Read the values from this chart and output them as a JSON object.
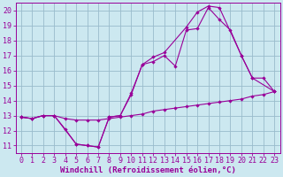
{
  "bg_color": "#cce8f0",
  "line_color": "#990099",
  "grid_color": "#99bbcc",
  "xlabel": "Windchill (Refroidissement éolien,°C)",
  "xlabel_fontsize": 6.5,
  "tick_fontsize": 6,
  "xlim": [
    -0.5,
    23.5
  ],
  "ylim": [
    10.5,
    20.5
  ],
  "xticks": [
    0,
    1,
    2,
    3,
    4,
    5,
    6,
    7,
    8,
    9,
    10,
    11,
    12,
    13,
    14,
    15,
    16,
    17,
    18,
    19,
    20,
    21,
    22,
    23
  ],
  "yticks": [
    11,
    12,
    13,
    14,
    15,
    16,
    17,
    18,
    19,
    20
  ],
  "curve1_x": [
    0,
    1,
    2,
    3,
    4,
    5,
    6,
    7,
    8,
    9,
    10,
    11,
    12,
    13,
    14,
    15,
    16,
    17,
    18,
    19,
    20,
    21,
    22,
    23
  ],
  "curve1_y": [
    12.9,
    12.8,
    13.0,
    13.0,
    12.8,
    12.7,
    12.7,
    12.7,
    12.8,
    12.9,
    13.0,
    13.1,
    13.3,
    13.4,
    13.5,
    13.6,
    13.7,
    13.8,
    13.9,
    14.0,
    14.1,
    14.3,
    14.4,
    14.6
  ],
  "curve2_x": [
    0,
    1,
    2,
    3,
    4,
    5,
    6,
    7,
    8,
    9,
    10,
    11,
    12,
    13,
    14,
    15,
    16,
    17,
    18,
    19,
    20,
    21,
    22,
    23
  ],
  "curve2_y": [
    12.9,
    12.8,
    13.0,
    13.0,
    12.1,
    11.1,
    11.0,
    10.9,
    12.9,
    13.0,
    14.4,
    16.4,
    16.6,
    17.0,
    16.3,
    18.7,
    18.8,
    20.2,
    19.4,
    18.7,
    17.0,
    15.5,
    15.5,
    14.6
  ],
  "curve3_x": [
    0,
    1,
    2,
    3,
    5,
    6,
    7,
    8,
    9,
    10,
    11,
    12,
    13,
    15,
    16,
    17,
    18,
    20,
    21,
    23
  ],
  "curve3_y": [
    12.9,
    12.8,
    13.0,
    13.0,
    11.1,
    11.0,
    10.9,
    12.9,
    13.0,
    14.5,
    16.4,
    16.9,
    17.2,
    18.9,
    19.9,
    20.3,
    20.2,
    17.0,
    15.5,
    14.6
  ]
}
